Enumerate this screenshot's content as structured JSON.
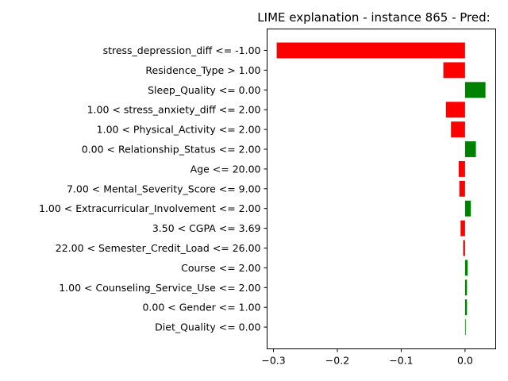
{
  "chart_data": {
    "type": "bar",
    "orientation": "horizontal",
    "title": "LIME explanation - instance 865 - Pred:",
    "xlabel": "",
    "ylabel": "",
    "xlim": [
      -0.31,
      0.048
    ],
    "xticks": [
      -0.3,
      -0.2,
      -0.1,
      0.0
    ],
    "xtick_labels": [
      "−0.3",
      "−0.2",
      "−0.1",
      "0.0"
    ],
    "grid": false,
    "colors": {
      "negative": "#ff0000",
      "positive": "#008000"
    },
    "categories": [
      "stress_depression_diff <= -1.00",
      "Residence_Type > 1.00",
      "Sleep_Quality <= 0.00",
      "1.00 < stress_anxiety_diff <= 2.00",
      "1.00 < Physical_Activity <= 2.00",
      "0.00 < Relationship_Status <= 2.00",
      "Age <= 20.00",
      "7.00 < Mental_Severity_Score <= 9.00",
      "1.00 < Extracurricular_Involvement <= 2.00",
      "3.50 < CGPA <= 3.69",
      "22.00 < Semester_Credit_Load <= 26.00",
      "Course <= 2.00",
      "1.00 < Counseling_Service_Use <= 2.00",
      "0.00 < Gender <= 1.00",
      "Diet_Quality <= 0.00"
    ],
    "values": [
      -0.295,
      -0.034,
      0.032,
      -0.03,
      -0.022,
      0.017,
      -0.01,
      -0.009,
      0.009,
      -0.007,
      -0.003,
      0.004,
      0.003,
      0.003,
      0.001
    ]
  }
}
